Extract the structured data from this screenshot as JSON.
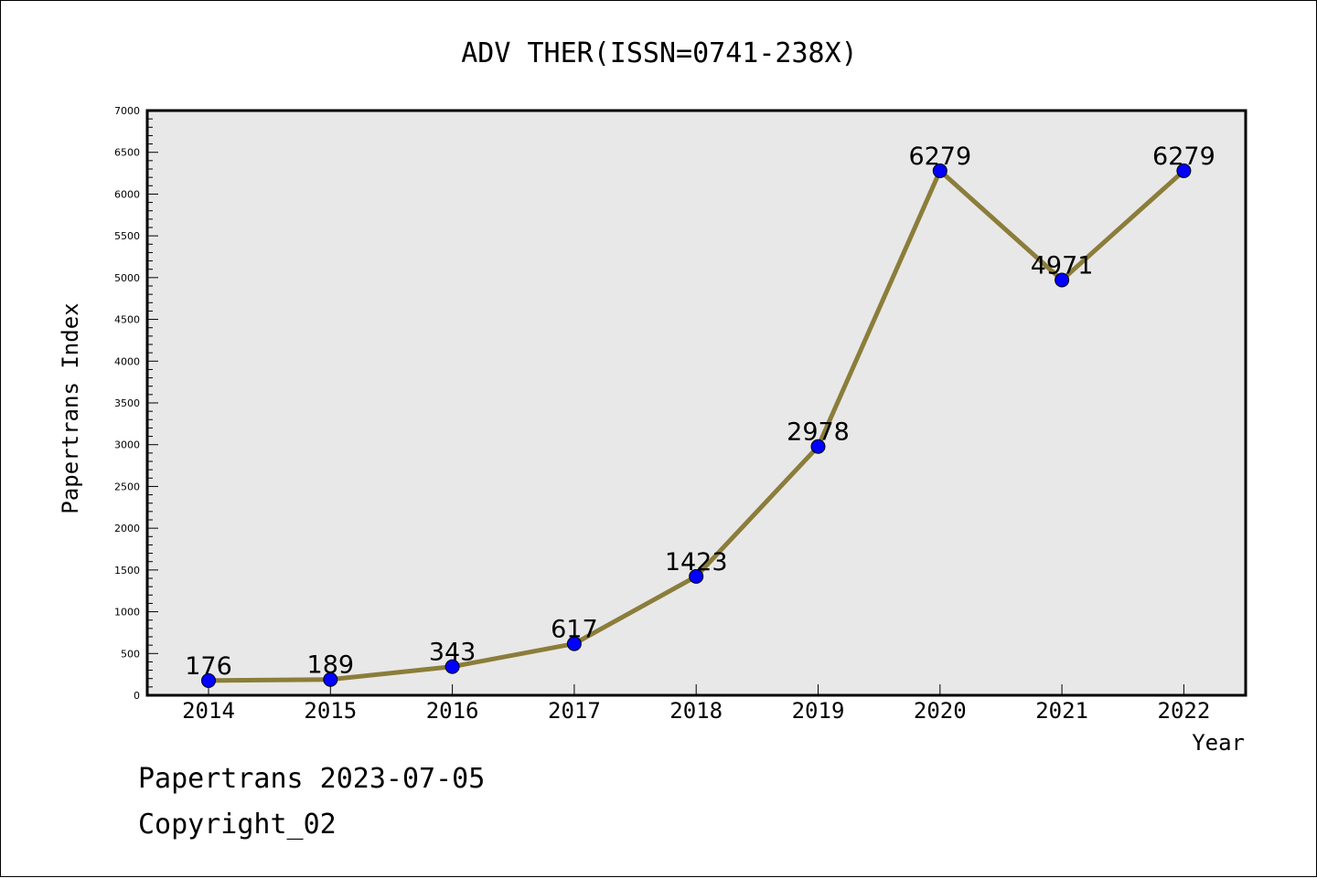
{
  "chart_data": {
    "type": "line",
    "title": "ADV THER(ISSN=0741-238X)",
    "xlabel": "Year",
    "ylabel": "Papertrans Index",
    "categories": [
      "2014",
      "2015",
      "2016",
      "2017",
      "2018",
      "2019",
      "2020",
      "2021",
      "2022"
    ],
    "series": [
      {
        "values": [
          176,
          189,
          343,
          617,
          1423,
          2978,
          6279,
          4971,
          6279
        ]
      }
    ],
    "data_labels": [
      "176",
      "189",
      "343",
      "617",
      "1423",
      "2978",
      "6279",
      "4971",
      "6279"
    ],
    "ylim": [
      0,
      7000
    ],
    "yticks": [
      0,
      500,
      1000,
      1500,
      2000,
      2500,
      3000,
      3500,
      4000,
      4500,
      5000,
      5500,
      6000,
      6500,
      7000
    ],
    "ytick_labels": [
      "0",
      "500",
      "1000",
      "1500",
      "2000",
      "2500",
      "3000",
      "3500",
      "4000",
      "4500",
      "5000",
      "5500",
      "6000",
      "6500",
      "7000"
    ],
    "grid": false,
    "line_color": "#8b7d3a",
    "marker_color": "#0000ff",
    "plot_background": "#e8e8e8"
  },
  "footer": {
    "source": "Papertrans 2023-07-05",
    "copyright": "Copyright_02"
  }
}
